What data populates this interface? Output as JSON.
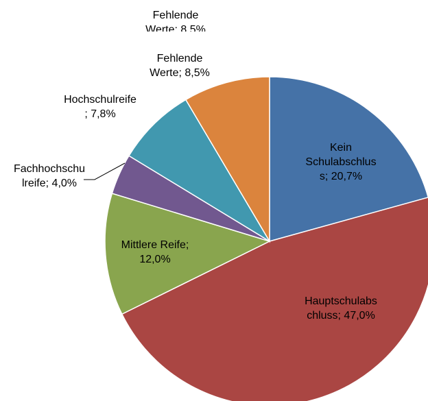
{
  "chart_data": {
    "type": "pie",
    "values": [
      20.7,
      47.0,
      12.0,
      4.0,
      7.8,
      8.5
    ],
    "value_labels": [
      "Kein Schulabschluss; 20,7%",
      "Hauptschulabschluss; 47,0%",
      "Mittlere Reife; 12,0%",
      "Fachhochschulreife; 4,0%",
      "Hochschulreife; 7,8%",
      "Fehlende Werte; 8,5%"
    ],
    "colors": [
      "#4572a7",
      "#aa4643",
      "#89a54e",
      "#71588f",
      "#4198af",
      "#db843d"
    ]
  }
}
